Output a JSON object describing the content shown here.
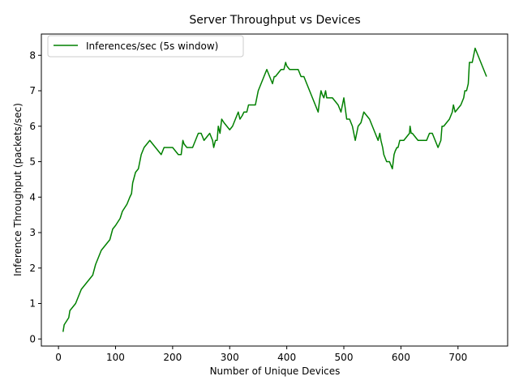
{
  "chart_data": {
    "type": "line",
    "title": "Server Throughput vs Devices",
    "xlabel": "Number of Unique Devices",
    "ylabel": "Inference Throughput (packets/sec)",
    "xlim": [
      -30,
      787
    ],
    "ylim": [
      -0.2,
      8.6
    ],
    "xticks": [
      0,
      100,
      200,
      300,
      400,
      500,
      600,
      700
    ],
    "yticks": [
      0,
      1,
      2,
      3,
      4,
      5,
      6,
      7,
      8
    ],
    "grid": false,
    "legend_position": "upper-left",
    "series": [
      {
        "name": "Inferences/sec (5s window)",
        "color": "#008000",
        "x": [
          8,
          10,
          18,
          20,
          25,
          30,
          35,
          40,
          50,
          55,
          60,
          65,
          70,
          75,
          80,
          90,
          95,
          100,
          108,
          112,
          120,
          125,
          128,
          130,
          135,
          140,
          145,
          150,
          160,
          170,
          180,
          185,
          190,
          200,
          205,
          210,
          215,
          218,
          220,
          225,
          230,
          235,
          240,
          245,
          250,
          255,
          260,
          265,
          270,
          272,
          275,
          278,
          280,
          283,
          286,
          290,
          295,
          300,
          305,
          310,
          315,
          318,
          322,
          325,
          330,
          333,
          340,
          345,
          350,
          355,
          360,
          365,
          370,
          375,
          378,
          380,
          385,
          390,
          395,
          398,
          400,
          405,
          410,
          415,
          420,
          425,
          430,
          435,
          440,
          445,
          450,
          455,
          458,
          460,
          462,
          465,
          468,
          470,
          475,
          480,
          485,
          490,
          495,
          500,
          505,
          510,
          515,
          520,
          525,
          530,
          535,
          540,
          545,
          550,
          555,
          560,
          563,
          565,
          568,
          570,
          575,
          580,
          585,
          588,
          590,
          593,
          595,
          598,
          600,
          605,
          610,
          615,
          616,
          618,
          620,
          625,
          630,
          635,
          640,
          645,
          650,
          655,
          660,
          665,
          670,
          672,
          675,
          680,
          685,
          690,
          692,
          695,
          700,
          705,
          710,
          712,
          715,
          718,
          720,
          725,
          730,
          735,
          740,
          745,
          750
        ],
        "y": [
          0.2,
          0.4,
          0.6,
          0.8,
          0.9,
          1.0,
          1.2,
          1.4,
          1.6,
          1.7,
          1.8,
          2.1,
          2.3,
          2.5,
          2.6,
          2.8,
          3.1,
          3.2,
          3.4,
          3.6,
          3.8,
          4.0,
          4.1,
          4.4,
          4.7,
          4.8,
          5.2,
          5.4,
          5.6,
          5.4,
          5.2,
          5.4,
          5.4,
          5.4,
          5.3,
          5.2,
          5.2,
          5.6,
          5.5,
          5.4,
          5.4,
          5.4,
          5.6,
          5.8,
          5.8,
          5.6,
          5.7,
          5.8,
          5.6,
          5.4,
          5.6,
          5.6,
          6.0,
          5.8,
          6.2,
          6.1,
          6.0,
          5.9,
          6.0,
          6.2,
          6.4,
          6.2,
          6.3,
          6.4,
          6.4,
          6.6,
          6.6,
          6.6,
          7.0,
          7.2,
          7.4,
          7.6,
          7.4,
          7.2,
          7.4,
          7.4,
          7.5,
          7.6,
          7.6,
          7.8,
          7.7,
          7.6,
          7.6,
          7.6,
          7.6,
          7.4,
          7.4,
          7.2,
          7.0,
          6.8,
          6.6,
          6.4,
          6.8,
          7.0,
          6.9,
          6.8,
          7.0,
          6.8,
          6.8,
          6.8,
          6.7,
          6.6,
          6.4,
          6.8,
          6.2,
          6.2,
          6.0,
          5.6,
          6.0,
          6.1,
          6.4,
          6.3,
          6.2,
          6.0,
          5.8,
          5.6,
          5.8,
          5.6,
          5.4,
          5.2,
          5.0,
          5.0,
          4.8,
          5.2,
          5.3,
          5.4,
          5.4,
          5.6,
          5.6,
          5.6,
          5.7,
          5.8,
          6.0,
          5.8,
          5.8,
          5.7,
          5.6,
          5.6,
          5.6,
          5.6,
          5.8,
          5.8,
          5.6,
          5.4,
          5.6,
          6.0,
          6.0,
          6.1,
          6.2,
          6.4,
          6.6,
          6.4,
          6.5,
          6.6,
          6.8,
          7.0,
          7.0,
          7.2,
          7.8,
          7.8,
          8.2,
          8.0,
          7.8,
          7.6,
          7.4
        ]
      }
    ]
  }
}
